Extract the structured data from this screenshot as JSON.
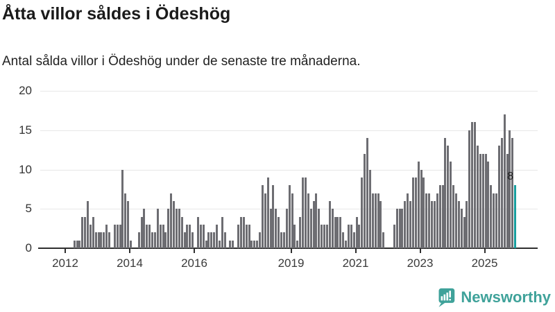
{
  "title": "Åtta villor såldes i Ödeshög",
  "subtitle": "Antal sålda villor i Ödeshög under de senaste tre månaderna.",
  "branding": {
    "name": "Newsworthy",
    "color": "#3fa29a",
    "icon": "bar-chart-speech-bubble"
  },
  "chart_data": {
    "type": "bar",
    "title": "Åtta villor såldes i Ödeshög",
    "subtitle": "Antal sålda villor i Ödeshög under de senaste tre månaderna.",
    "xlabel": "",
    "ylabel": "",
    "ylim": [
      0,
      20
    ],
    "y_ticks": [
      0,
      5,
      10,
      15,
      20
    ],
    "x_tick_years": [
      2012,
      2014,
      2016,
      2019,
      2021,
      2023,
      2025
    ],
    "grid": "horizontal",
    "legend": "none",
    "bar_color": "#6d6d72",
    "highlight_color": "#189e9e",
    "start_month": "2012-04",
    "frequency": "monthly",
    "values": [
      1,
      1,
      1,
      4,
      4,
      6,
      3,
      4,
      2,
      2,
      2,
      2,
      3,
      2,
      0,
      3,
      3,
      3,
      10,
      7,
      6,
      1,
      0,
      0,
      2,
      4,
      5,
      3,
      3,
      2,
      2,
      5,
      3,
      3,
      2,
      5,
      7,
      6,
      5,
      5,
      4,
      2,
      3,
      3,
      2,
      0,
      4,
      3,
      3,
      1,
      2,
      2,
      2,
      3,
      1,
      4,
      2,
      0,
      1,
      1,
      0,
      3,
      4,
      4,
      3,
      3,
      1,
      1,
      1,
      2,
      8,
      7,
      9,
      5,
      8,
      5,
      4,
      2,
      2,
      5,
      8,
      7,
      3,
      1,
      4,
      9,
      9,
      7,
      5,
      6,
      7,
      5,
      3,
      3,
      3,
      6,
      5,
      4,
      4,
      4,
      2,
      1,
      3,
      3,
      2,
      4,
      3,
      9,
      12,
      14,
      10,
      7,
      7,
      7,
      6,
      2,
      0,
      0,
      0,
      3,
      5,
      5,
      5,
      6,
      7,
      6,
      9,
      9,
      11,
      10,
      9,
      7,
      7,
      6,
      6,
      7,
      8,
      8,
      14,
      13,
      11,
      8,
      7,
      6,
      5,
      4,
      6,
      15,
      16,
      16,
      13,
      12,
      12,
      12,
      11,
      8,
      7,
      7,
      13,
      14,
      17,
      12,
      15,
      14,
      8
    ],
    "highlight": {
      "index": "last",
      "value": 8,
      "label": "8"
    },
    "annotation": {
      "label": "8"
    }
  }
}
